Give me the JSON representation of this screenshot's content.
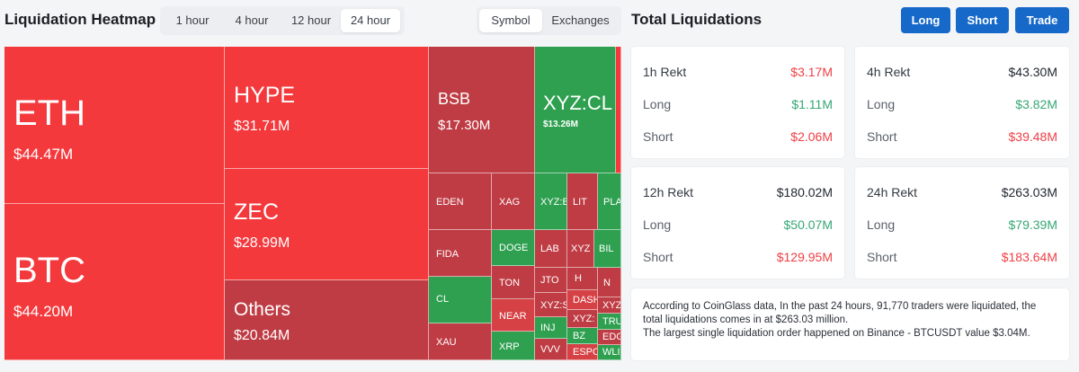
{
  "heatmap": {
    "title": "Liquidation Heatmap",
    "time_options": [
      "1 hour",
      "4 hour",
      "12 hour",
      "24 hour"
    ],
    "time_selected": "24 hour",
    "view_options": [
      "Symbol",
      "Exchanges"
    ],
    "view_selected": "Symbol",
    "tiles": [
      {
        "symbol": "ETH",
        "value": "$44.47M",
        "side": "long-heavy"
      },
      {
        "symbol": "BTC",
        "value": "$44.20M",
        "side": "long-heavy"
      },
      {
        "symbol": "HYPE",
        "value": "$31.71M",
        "side": "long-heavy"
      },
      {
        "symbol": "ZEC",
        "value": "$28.99M",
        "side": "long-heavy"
      },
      {
        "symbol": "Others",
        "value": "$20.84M",
        "side": "long-heavy"
      },
      {
        "symbol": "BSB",
        "value": "$17.30M",
        "side": "long-heavy"
      },
      {
        "symbol": "XYZ:CL",
        "value": "$13.26M",
        "side": "short-heavy"
      },
      {
        "symbol": "EDEN"
      },
      {
        "symbol": "XAG"
      },
      {
        "symbol": "XYZ:B"
      },
      {
        "symbol": "LIT"
      },
      {
        "symbol": "PLA"
      },
      {
        "symbol": "FIDA"
      },
      {
        "symbol": "DOGE"
      },
      {
        "symbol": "LAB"
      },
      {
        "symbol": "XYZ"
      },
      {
        "symbol": "BIL"
      },
      {
        "symbol": "CL"
      },
      {
        "symbol": "TON"
      },
      {
        "symbol": "JTO"
      },
      {
        "symbol": "H"
      },
      {
        "symbol": "N"
      },
      {
        "symbol": "NEAR"
      },
      {
        "symbol": "XYZ:S"
      },
      {
        "symbol": "DASH"
      },
      {
        "symbol": "XYZ"
      },
      {
        "symbol": "XAU"
      },
      {
        "symbol": "XRP"
      },
      {
        "symbol": "INJ"
      },
      {
        "symbol": "XYZ:"
      },
      {
        "symbol": "TRU"
      },
      {
        "symbol": "BZ"
      },
      {
        "symbol": "EDG"
      },
      {
        "symbol": "VVV"
      },
      {
        "symbol": "ESPO"
      },
      {
        "symbol": "WLI"
      }
    ]
  },
  "total": {
    "title": "Total Liquidations",
    "buttons": {
      "long": "Long",
      "short": "Short",
      "trade": "Trade"
    },
    "cards": [
      {
        "label": "1h Rekt",
        "total": "$3.17M",
        "long_label": "Long",
        "long": "$1.11M",
        "short_label": "Short",
        "short": "$2.06M"
      },
      {
        "label": "4h Rekt",
        "total": "$43.30M",
        "long_label": "Long",
        "long": "$3.82M",
        "short_label": "Short",
        "short": "$39.48M"
      },
      {
        "label": "12h Rekt",
        "total": "$180.02M",
        "long_label": "Long",
        "long": "$50.07M",
        "short_label": "Short",
        "short": "$129.95M"
      },
      {
        "label": "24h Rekt",
        "total": "$263.03M",
        "long_label": "Long",
        "long": "$79.39M",
        "short_label": "Short",
        "short": "$183.64M"
      }
    ],
    "summary_line1": "According to CoinGlass data, In the past 24 hours, 91,770 traders were liquidated, the",
    "summary_line2": "total liquidations comes in at $263.03 million.",
    "summary_line3": "The largest single liquidation order happened on Binance - BTCUSDT value $3.04M."
  },
  "colors": {
    "red_bright": "#f4393d",
    "red": "#d64145",
    "red_dark": "#bf3c44",
    "green": "#2ea050",
    "accent": "#1769c9",
    "text_red": "#ef3f44",
    "text_green": "#35a774"
  }
}
